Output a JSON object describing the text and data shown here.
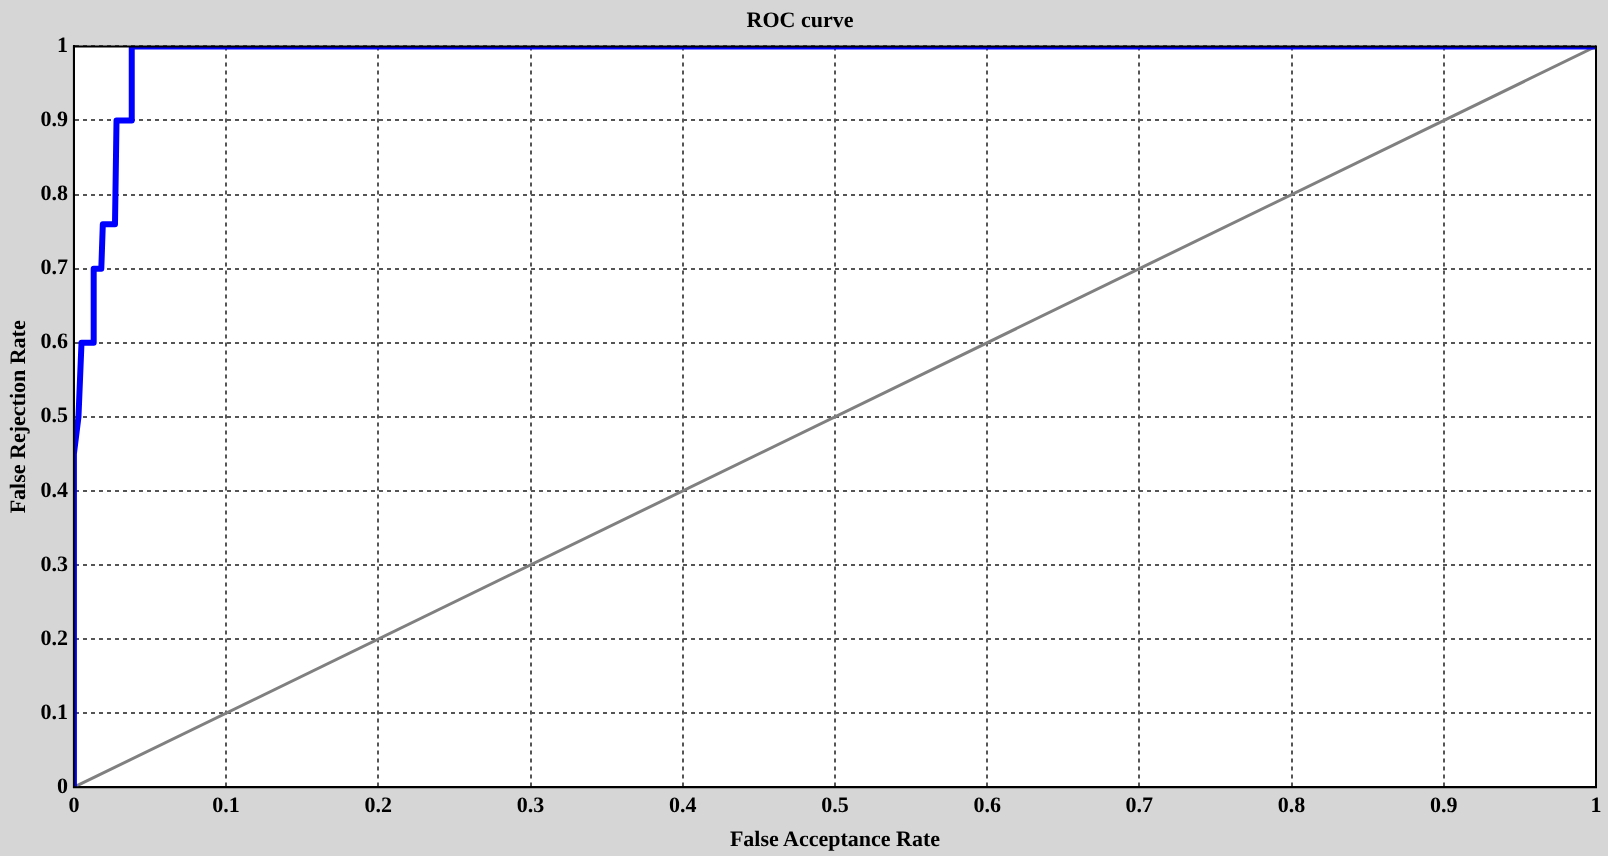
{
  "chart_data": {
    "type": "line",
    "title": "ROC curve",
    "xlabel": "False Acceptance Rate",
    "ylabel": "False Rejection Rate",
    "xlim": [
      0,
      1
    ],
    "ylim": [
      0,
      1
    ],
    "xticks": [
      0,
      0.1,
      0.2,
      0.3,
      0.4,
      0.5,
      0.6,
      0.7,
      0.8,
      0.9,
      1
    ],
    "yticks": [
      0,
      0.1,
      0.2,
      0.3,
      0.4,
      0.5,
      0.6,
      0.7,
      0.8,
      0.9,
      1
    ],
    "grid": true,
    "legend": false,
    "marker": "none",
    "series": [
      {
        "color": "#0000ff",
        "x": [
          0,
          0,
          0.003,
          0.005,
          0.012,
          0.013,
          0.018,
          0.019,
          0.027,
          0.028,
          0.037,
          0.038,
          1
        ],
        "values": [
          0,
          0.45,
          0.5,
          0.6,
          0.6,
          0.7,
          0.7,
          0.76,
          0.76,
          0.9,
          0.9,
          1,
          1
        ]
      },
      {
        "color": "#808080",
        "x": [
          0,
          1
        ],
        "values": [
          0,
          1
        ]
      }
    ]
  }
}
